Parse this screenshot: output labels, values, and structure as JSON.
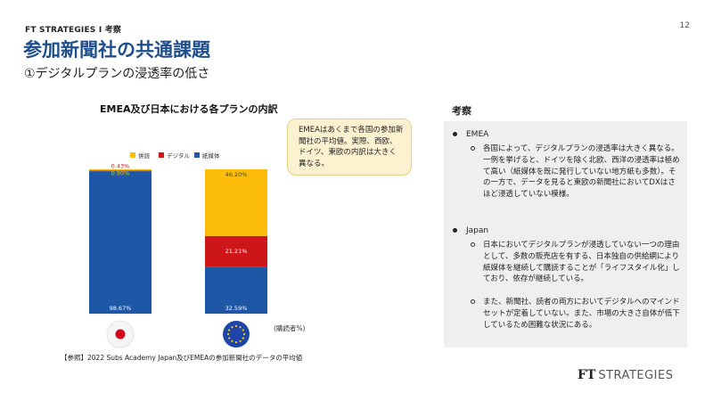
{
  "header": {
    "breadcrumb": "FT STRATEGIES Ⅰ 考察",
    "page_number": "12",
    "title": "参加新聞社の共通課題",
    "subtitle": "①デジタルプランの浸透率の低さ"
  },
  "chart_data": {
    "type": "bar",
    "stacked": true,
    "title": "EMEA及び日本における各プランの内訳",
    "ylabel": "(購読者%)",
    "ylim": [
      0,
      100
    ],
    "categories": [
      "日本",
      "EMEA"
    ],
    "legend": {
      "placement": "top",
      "entries": [
        "併読",
        "デジタル",
        "紙媒体"
      ]
    },
    "series": [
      {
        "name": "紙媒体",
        "color": "#1e57a6",
        "values": [
          98.67,
          32.59
        ],
        "labels": [
          "98.67%",
          "32.59%"
        ]
      },
      {
        "name": "デジタル",
        "color": "#cc1617",
        "values": [
          0.43,
          21.21
        ],
        "labels": [
          "0.43%",
          "21.21%"
        ]
      },
      {
        "name": "併読",
        "color": "#fbbd0a",
        "values": [
          0.9,
          46.2
        ],
        "labels": [
          "0.90%",
          "46.20%"
        ]
      }
    ],
    "flags": [
      "japan-flag",
      "eu-flag"
    ]
  },
  "callout": {
    "text": "EMEAはあくまで各国の参加新聞社の平均値。実際、西欧、ドイツ、東欧の内訳は大きく異なる。"
  },
  "source_note": "【参照】2022 Subs Academy Japan及びEMEAの参加新聞社のデータの平均値",
  "discussion": {
    "heading": "考察",
    "sections": [
      {
        "title": "EMEA",
        "items": [
          "各国によって、デジタルプランの浸透率は大きく異なる。一例を挙げると、ドイツを除く北欧、西洋の浸透率は極めて高い（紙媒体を既に発行していない地方紙も多数）。その一方で、データを見ると東欧の新聞社においてDXはさほど浸透していない模様。"
        ]
      },
      {
        "title": "Japan",
        "items": [
          "日本においてデジタルプランが浸透していない一つの理由として、多数の販売店を有する、日本独自の供給網により紙媒体を継続して購読することが「ライフスタイル化」しており、依存が継続している。",
          "また、新聞社、読者の両方においてデジタルへのマインドセットが定着していない。また、市場の大きさ自体が低下しているため困難な状況にある。"
        ]
      }
    ]
  },
  "logo": {
    "mark": "FT",
    "name": "STRATEGIES"
  }
}
